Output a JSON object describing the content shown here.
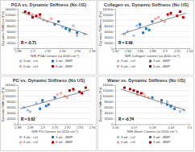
{
  "chart_data": [
    {
      "type": "scatter",
      "title": "PGA vs. Dynamic Stiffness (No US)",
      "x_label": "NIR PGA Content (at 4000 cm⁻¹)",
      "y_label": "Dynamic Stiffness (Pa)",
      "annotation": "R = -0.71",
      "xlim": [
        2.88,
        2.98
      ],
      "xticks": [
        2.88,
        2.9,
        2.92,
        2.94,
        2.96,
        2.98
      ],
      "ylim": [
        0,
        140000
      ],
      "yticks": [
        0,
        20000,
        40000,
        60000,
        80000,
        100000,
        120000,
        140000
      ],
      "grid": true,
      "legend": "bottom",
      "marker": "square",
      "series": [
        {
          "name": "3 wk - ctrl",
          "color": "#9dc3e6",
          "x": [
            2.95,
            2.96,
            2.94,
            2.97,
            2.955
          ],
          "values": [
            60000,
            45000,
            75000,
            50000,
            80000
          ]
        },
        {
          "name": "3 wk - BMP",
          "color": "#2e75b6",
          "x": [
            2.93,
            2.945,
            2.96,
            2.935,
            2.95
          ],
          "values": [
            85000,
            70000,
            55000,
            95000,
            65000
          ]
        },
        {
          "name": "6 wk - ctrl",
          "color": "#f4a6a6",
          "x": [
            2.91,
            2.92,
            2.925,
            2.9,
            2.915
          ],
          "values": [
            110000,
            95000,
            105000,
            120000,
            100000
          ]
        },
        {
          "name": "6 wk - BMP",
          "color": "#c00000",
          "x": [
            2.895,
            2.905,
            2.89,
            2.91,
            2.9
          ],
          "values": [
            125000,
            115000,
            130000,
            120000,
            110000
          ]
        }
      ],
      "trendline": {
        "x": [
          2.885,
          2.975
        ],
        "values": [
          128000,
          48000
        ]
      }
    },
    {
      "type": "scatter",
      "title": "Collagen vs. Dynamic Stiffness (No US)",
      "x_label": "NIR Collagen Content (at 4600 cm⁻¹)",
      "y_label": "Dynamic Stiffness (Pa)",
      "annotation": "R = 0.69",
      "xlim": [
        2.82,
        2.94
      ],
      "xticks": [
        2.82,
        2.84,
        2.86,
        2.88,
        2.9,
        2.92,
        2.94
      ],
      "ylim": [
        0,
        140000
      ],
      "yticks": [
        0,
        20000,
        40000,
        60000,
        80000,
        100000,
        120000,
        140000
      ],
      "grid": true,
      "legend": "bottom",
      "marker": "square",
      "series": [
        {
          "name": "3 wk - ctrl",
          "color": "#9dc3e6",
          "x": [
            2.84,
            2.85,
            2.86,
            2.835,
            2.855
          ],
          "values": [
            60000,
            45000,
            75000,
            50000,
            80000
          ]
        },
        {
          "name": "3 wk - BMP",
          "color": "#2e75b6",
          "x": [
            2.86,
            2.87,
            2.865,
            2.88,
            2.875
          ],
          "values": [
            85000,
            70000,
            55000,
            95000,
            65000
          ]
        },
        {
          "name": "6 wk - ctrl",
          "color": "#f4a6a6",
          "x": [
            2.89,
            2.9,
            2.885,
            2.91,
            2.895
          ],
          "values": [
            110000,
            95000,
            105000,
            120000,
            100000
          ]
        },
        {
          "name": "6 wk - BMP",
          "color": "#c00000",
          "x": [
            2.91,
            2.92,
            2.925,
            2.905,
            2.93
          ],
          "values": [
            125000,
            115000,
            130000,
            120000,
            110000
          ]
        }
      ],
      "trendline": {
        "x": [
          2.83,
          2.935
        ],
        "values": [
          50000,
          125000
        ]
      }
    },
    {
      "type": "scatter",
      "title": "PG vs. Dynamic Stiffness (No US)",
      "x_label": "NIR PG Content (at 4310 cm⁻¹)",
      "y_label": "Dynamic Stiffness (Pa)",
      "annotation": "R = 0.62",
      "xlim": [
        2.88,
        2.94
      ],
      "xticks": [
        2.88,
        2.89,
        2.9,
        2.91,
        2.92,
        2.93,
        2.94
      ],
      "ylim": [
        0,
        140000
      ],
      "yticks": [
        0,
        20000,
        40000,
        60000,
        80000,
        100000,
        120000,
        140000
      ],
      "grid": true,
      "legend": "bottom",
      "marker": "square",
      "series": [
        {
          "name": "3 wk - ctrl",
          "color": "#9dc3e6",
          "x": [
            2.885,
            2.89,
            2.895,
            2.888,
            2.9
          ],
          "values": [
            60000,
            45000,
            75000,
            50000,
            80000
          ]
        },
        {
          "name": "3 wk - BMP",
          "color": "#2e75b6",
          "x": [
            2.9,
            2.905,
            2.898,
            2.91,
            2.903
          ],
          "values": [
            85000,
            70000,
            55000,
            95000,
            65000
          ]
        },
        {
          "name": "6 wk - ctrl",
          "color": "#f4a6a6",
          "x": [
            2.915,
            2.92,
            2.912,
            2.925,
            2.918
          ],
          "values": [
            110000,
            95000,
            105000,
            120000,
            100000
          ]
        },
        {
          "name": "6 wk - BMP",
          "color": "#c00000",
          "x": [
            2.925,
            2.93,
            2.935,
            2.922,
            2.932
          ],
          "values": [
            125000,
            115000,
            130000,
            120000,
            110000
          ]
        }
      ],
      "trendline": {
        "x": [
          2.882,
          2.938
        ],
        "values": [
          55000,
          122000
        ]
      }
    },
    {
      "type": "scatter",
      "title": "Water vs. Dynamic Stiffness (No US)",
      "x_label": "NIR Water Content (at 5200 cm⁻¹)",
      "y_label": "Dynamic Stiffness (Pa)",
      "annotation": "R = -0.74",
      "xlim": [
        0.06,
        0.1
      ],
      "xticks": [
        0.06,
        0.07,
        0.08,
        0.09,
        0.1
      ],
      "ylim": [
        0,
        140000
      ],
      "yticks": [
        0,
        20000,
        40000,
        60000,
        80000,
        100000,
        120000,
        140000
      ],
      "grid": true,
      "legend": "bottom",
      "marker": "square",
      "series": [
        {
          "name": "3 wk - ctrl",
          "color": "#9dc3e6",
          "x": [
            0.09,
            0.095,
            0.085,
            0.097,
            0.088
          ],
          "values": [
            60000,
            45000,
            75000,
            50000,
            80000
          ]
        },
        {
          "name": "3 wk - BMP",
          "color": "#2e75b6",
          "x": [
            0.085,
            0.088,
            0.092,
            0.08,
            0.09
          ],
          "values": [
            85000,
            70000,
            55000,
            95000,
            65000
          ]
        },
        {
          "name": "6 wk - ctrl",
          "color": "#f4a6a6",
          "x": [
            0.075,
            0.078,
            0.072,
            0.07,
            0.076
          ],
          "values": [
            110000,
            95000,
            105000,
            120000,
            100000
          ]
        },
        {
          "name": "6 wk - BMP",
          "color": "#c00000",
          "x": [
            0.068,
            0.072,
            0.065,
            0.07,
            0.074
          ],
          "values": [
            125000,
            115000,
            130000,
            120000,
            110000
          ]
        }
      ],
      "trendline": {
        "x": [
          0.063,
          0.098
        ],
        "values": [
          125000,
          50000
        ]
      }
    }
  ]
}
